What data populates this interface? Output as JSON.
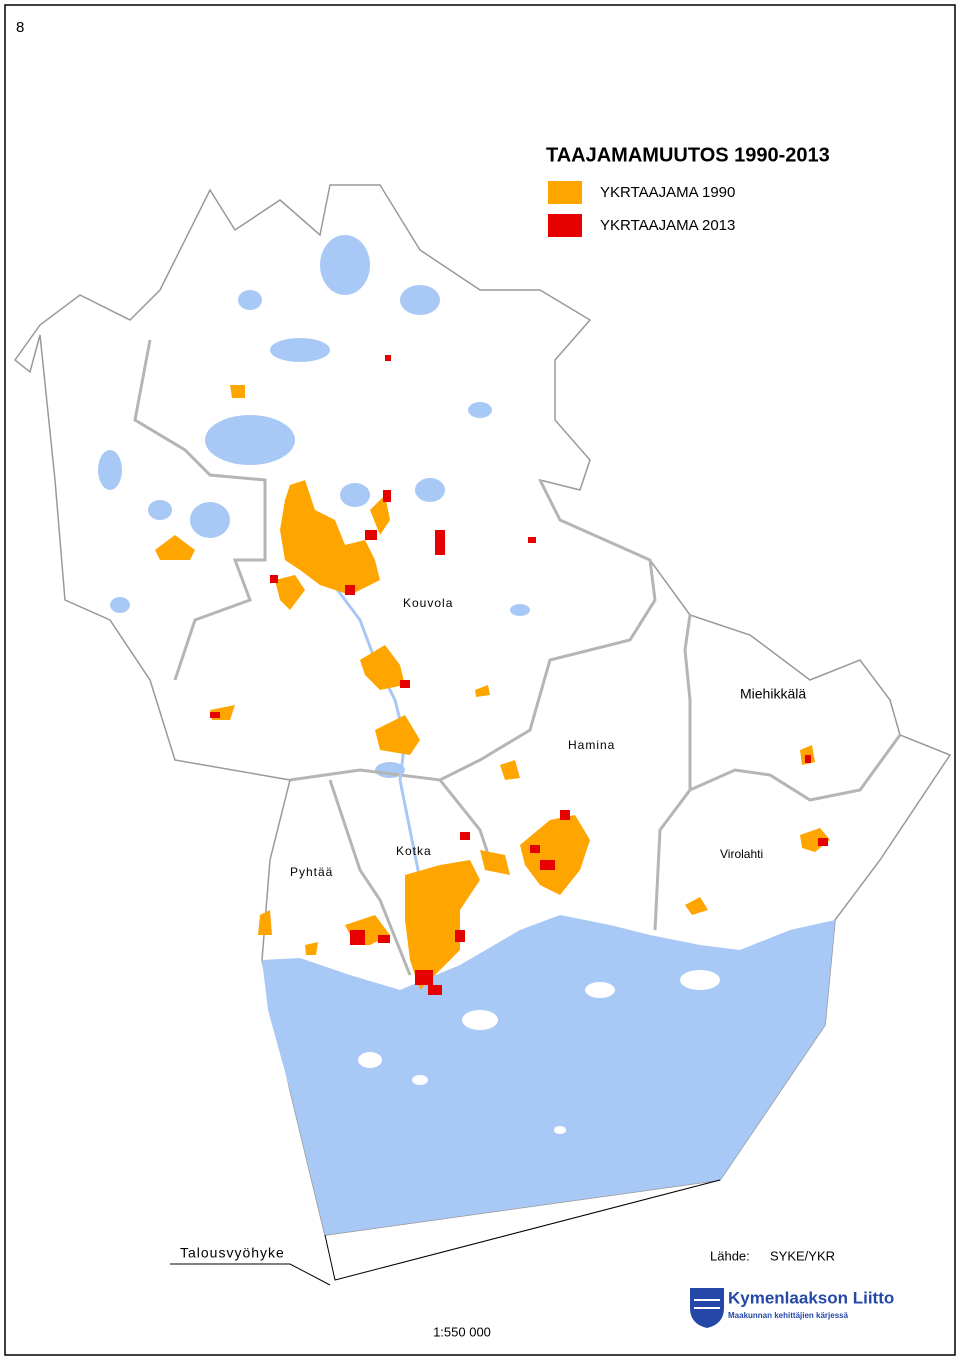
{
  "page_number": "8",
  "legend": {
    "title": "TAAJAMAMUUTOS 1990-2013",
    "items": [
      {
        "label": "YKRTAAJAMA 1990",
        "color": "#ffa500"
      },
      {
        "label": "YKRTAAJAMA 2013",
        "color": "#e60000"
      }
    ]
  },
  "places": [
    "Kouvola",
    "Miehikkälä",
    "Hamina",
    "Kotka",
    "Pyhtää",
    "Virolahti"
  ],
  "annotations": {
    "zone": "Talousvyöhyke",
    "source_label": "Lähde:",
    "source": "SYKE/YKR",
    "scale": "1:550 000"
  },
  "logo": {
    "name": "Kymenlaakson Liitto",
    "tagline": "Maakunnan kehittäjien kärjessä"
  }
}
